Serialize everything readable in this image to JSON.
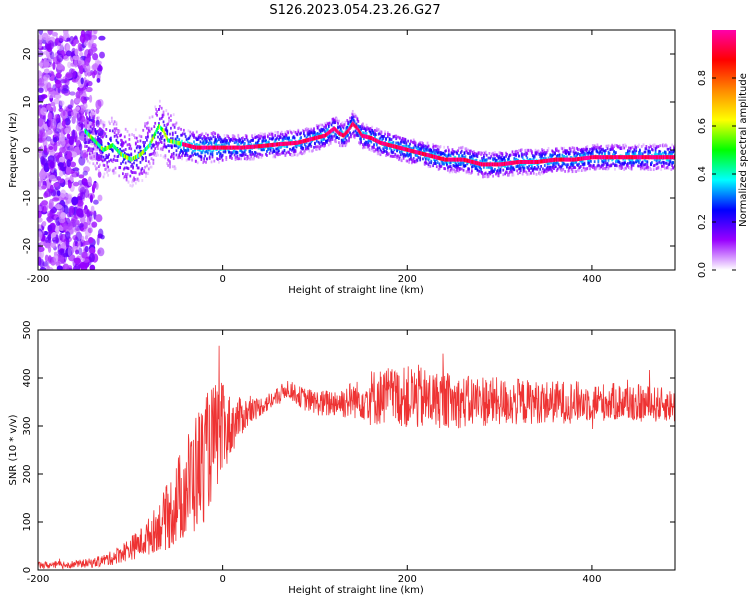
{
  "figure": {
    "title": "S126.2023.054.23.26.G27"
  },
  "chart_data": [
    {
      "type": "heatmap",
      "name": "spectrogram",
      "xlabel": "Height of straight line (km)",
      "ylabel": "Frequency (Hz)",
      "xlim": [
        -200,
        490
      ],
      "ylim": [
        -25,
        25
      ],
      "x_ticks": [
        -200,
        0,
        200,
        400
      ],
      "y_ticks": [
        -20,
        -10,
        0,
        10,
        20
      ],
      "colorbar": {
        "label": "Normalized spectral amplitude",
        "range": [
          0,
          1
        ],
        "ticks": [
          0.0,
          0.2,
          0.4,
          0.6,
          0.8
        ],
        "tick_labels": [
          "0.0",
          "0.2",
          "0.4",
          "0.6",
          "0.8"
        ],
        "colors": [
          "#ffffff",
          "#9900ff",
          "#0000ff",
          "#00ffff",
          "#00ff00",
          "#ffff00",
          "#ff8800",
          "#ff0000",
          "#ff00aa"
        ]
      },
      "ridge": {
        "x": [
          -150,
          -140,
          -130,
          -120,
          -110,
          -100,
          -90,
          -80,
          -75,
          -70,
          -65,
          -60,
          -50,
          -40,
          -30,
          -20,
          0,
          20,
          40,
          60,
          80,
          90,
          100,
          110,
          120,
          125,
          130,
          135,
          140,
          145,
          150,
          160,
          170,
          180,
          190,
          200,
          220,
          240,
          260,
          280,
          300,
          320,
          340,
          360,
          380,
          400,
          420,
          440,
          460,
          480,
          490
        ],
        "y": [
          4,
          2,
          0,
          1,
          -1,
          -2,
          -1,
          1,
          3,
          5,
          4,
          2,
          1.5,
          1,
          0.5,
          0.5,
          0.5,
          0.5,
          0.8,
          1.2,
          1.5,
          2,
          2.5,
          3,
          4.5,
          3.5,
          3,
          4,
          5.5,
          4.5,
          3,
          2.5,
          1.5,
          1,
          0.5,
          0,
          -1,
          -2,
          -2,
          -3,
          -3,
          -2.5,
          -2.5,
          -2,
          -2,
          -1.5,
          -1.5,
          -1.5,
          -1.5,
          -1.5,
          -1.5
        ]
      },
      "noise_region_x": [
        -200,
        -150
      ]
    },
    {
      "type": "line",
      "name": "snr",
      "xlabel": "Height of straight line (km)",
      "ylabel": "SNR (10 * v/v)",
      "xlim": [
        -200,
        490
      ],
      "ylim": [
        0,
        500
      ],
      "x_ticks": [
        -200,
        0,
        200,
        400
      ],
      "y_ticks": [
        0,
        100,
        200,
        300,
        400,
        500
      ],
      "color": "#ee3333",
      "series": [
        {
          "x": [
            -200,
            -180,
            -160,
            -140,
            -130,
            -120,
            -110,
            -100,
            -90,
            -80,
            -70,
            -60,
            -50,
            -40,
            -30,
            -20,
            -10,
            0,
            10,
            20,
            30,
            40,
            50,
            60,
            70,
            80,
            90,
            100,
            110,
            120,
            130,
            140,
            150,
            160,
            170,
            180,
            190,
            200,
            210,
            220,
            230,
            240,
            250,
            260,
            270,
            280,
            290,
            300,
            320,
            340,
            360,
            380,
            400,
            420,
            440,
            460,
            480,
            490
          ],
          "values": [
            10,
            10,
            12,
            15,
            20,
            25,
            35,
            45,
            55,
            70,
            90,
            110,
            140,
            170,
            200,
            230,
            270,
            290,
            300,
            320,
            330,
            340,
            350,
            360,
            380,
            365,
            355,
            350,
            345,
            350,
            350,
            355,
            355,
            360,
            360,
            365,
            360,
            360,
            360,
            355,
            355,
            355,
            350,
            350,
            350,
            355,
            350,
            350,
            350,
            350,
            350,
            350,
            350,
            350,
            350,
            345,
            345,
            340
          ],
          "spread": [
            8,
            8,
            8,
            10,
            12,
            15,
            20,
            25,
            30,
            40,
            50,
            70,
            90,
            110,
            130,
            130,
            120,
            100,
            60,
            40,
            30,
            20,
            20,
            20,
            20,
            20,
            25,
            25,
            30,
            30,
            35,
            40,
            40,
            60,
            60,
            60,
            60,
            65,
            70,
            65,
            60,
            60,
            55,
            55,
            55,
            55,
            55,
            50,
            50,
            45,
            45,
            45,
            40,
            40,
            40,
            40,
            35,
            35
          ]
        }
      ]
    }
  ]
}
